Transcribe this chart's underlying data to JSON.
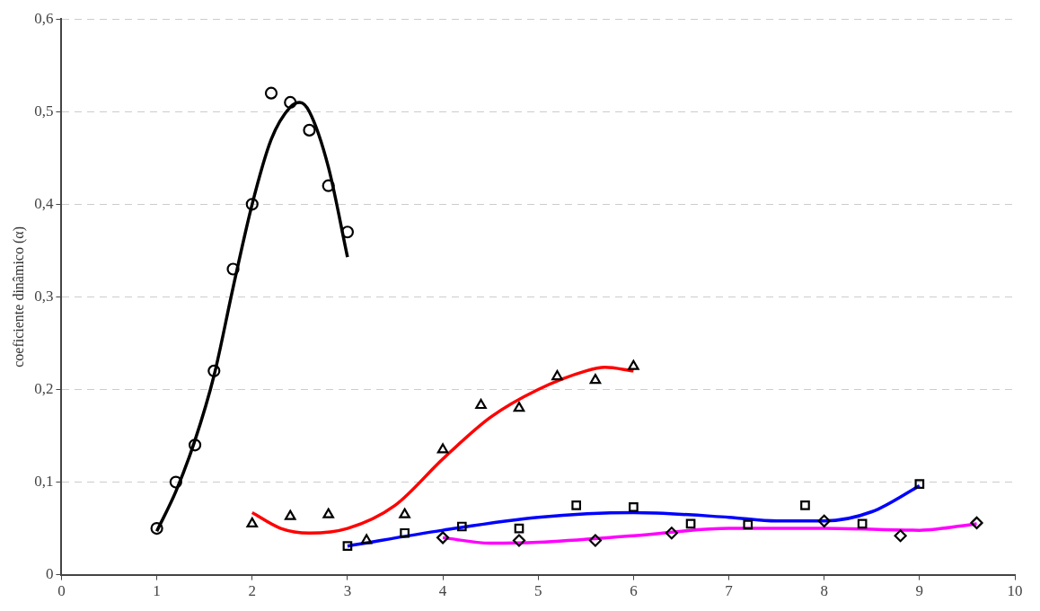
{
  "chart_data": {
    "type": "scatter",
    "ylabel": "coeficiente dinâmico (α)",
    "xlim": [
      0,
      10
    ],
    "xticks": [
      0,
      1,
      2,
      3,
      4,
      5,
      6,
      7,
      8,
      9,
      10
    ],
    "ylim": [
      0,
      0.6
    ],
    "yticks": [
      {
        "value": 0,
        "label": "0"
      },
      {
        "value": 0.1,
        "label": "0,1"
      },
      {
        "value": 0.2,
        "label": "0,2"
      },
      {
        "value": 0.3,
        "label": "0,3"
      },
      {
        "value": 0.4,
        "label": "0,4"
      },
      {
        "value": 0.5,
        "label": "0,5"
      },
      {
        "value": 0.6,
        "label": "0,6"
      }
    ],
    "grid": "y",
    "legend": false,
    "series": [
      {
        "type": "scatter",
        "marker": "circle",
        "color": "#000000",
        "x": [
          1,
          1.2,
          1.4,
          1.6,
          1.8,
          2,
          2.2,
          2.4,
          2.6,
          2.8,
          3
        ],
        "values": [
          0.05,
          0.1,
          0.14,
          0.22,
          0.33,
          0.4,
          0.52,
          0.51,
          0.48,
          0.42,
          0.37
        ]
      },
      {
        "type": "scatter",
        "marker": "triangle",
        "color": "#000000",
        "x": [
          2,
          2.4,
          2.8,
          3.2,
          3.6,
          4,
          4.4,
          4.8,
          5.2,
          5.6,
          6
        ],
        "values": [
          0.055,
          0.063,
          0.065,
          0.037,
          0.065,
          0.135,
          0.183,
          0.18,
          0.214,
          0.21,
          0.225
        ]
      },
      {
        "type": "scatter",
        "marker": "square",
        "color": "#000000",
        "x": [
          3,
          3.6,
          4.2,
          4.8,
          5.4,
          6,
          6.6,
          7.2,
          7.8,
          8.4,
          9
        ],
        "values": [
          0.031,
          0.045,
          0.052,
          0.05,
          0.075,
          0.073,
          0.055,
          0.054,
          0.075,
          0.055,
          0.098
        ]
      },
      {
        "type": "scatter",
        "marker": "diamond",
        "color": "#000000",
        "x": [
          4,
          4.8,
          5.6,
          6.4,
          8,
          8.8,
          9.6
        ],
        "values": [
          0.04,
          0.037,
          0.037,
          0.045,
          0.058,
          0.042,
          0.056
        ]
      },
      {
        "type": "line",
        "marker": "none",
        "line_style": "solid",
        "color": "#000000",
        "x": [
          1,
          1.2,
          1.4,
          1.6,
          1.8,
          2,
          2.2,
          2.4,
          2.5,
          2.6,
          2.8,
          3
        ],
        "values": [
          0.047,
          0.09,
          0.145,
          0.215,
          0.31,
          0.4,
          0.47,
          0.505,
          0.51,
          0.5,
          0.44,
          0.343
        ]
      },
      {
        "type": "line",
        "marker": "none",
        "line_style": "solid",
        "color": "#ff0000",
        "x": [
          2,
          2.3,
          2.6,
          3,
          3.5,
          4,
          4.5,
          5,
          5.5,
          5.7,
          6
        ],
        "values": [
          0.067,
          0.05,
          0.045,
          0.05,
          0.075,
          0.125,
          0.17,
          0.2,
          0.22,
          0.224,
          0.22
        ]
      },
      {
        "type": "line",
        "marker": "none",
        "line_style": "solid",
        "color": "#0000ff",
        "x": [
          3,
          4,
          5,
          6,
          7,
          7.5,
          8,
          8.5,
          9
        ],
        "values": [
          0.031,
          0.048,
          0.062,
          0.067,
          0.062,
          0.058,
          0.058,
          0.068,
          0.096
        ]
      },
      {
        "type": "line",
        "marker": "none",
        "line_style": "solid",
        "color": "#ff00ff",
        "x": [
          4,
          4.5,
          5,
          6,
          7,
          8,
          9,
          9.6
        ],
        "values": [
          0.04,
          0.034,
          0.035,
          0.042,
          0.05,
          0.05,
          0.048,
          0.055
        ]
      }
    ]
  }
}
